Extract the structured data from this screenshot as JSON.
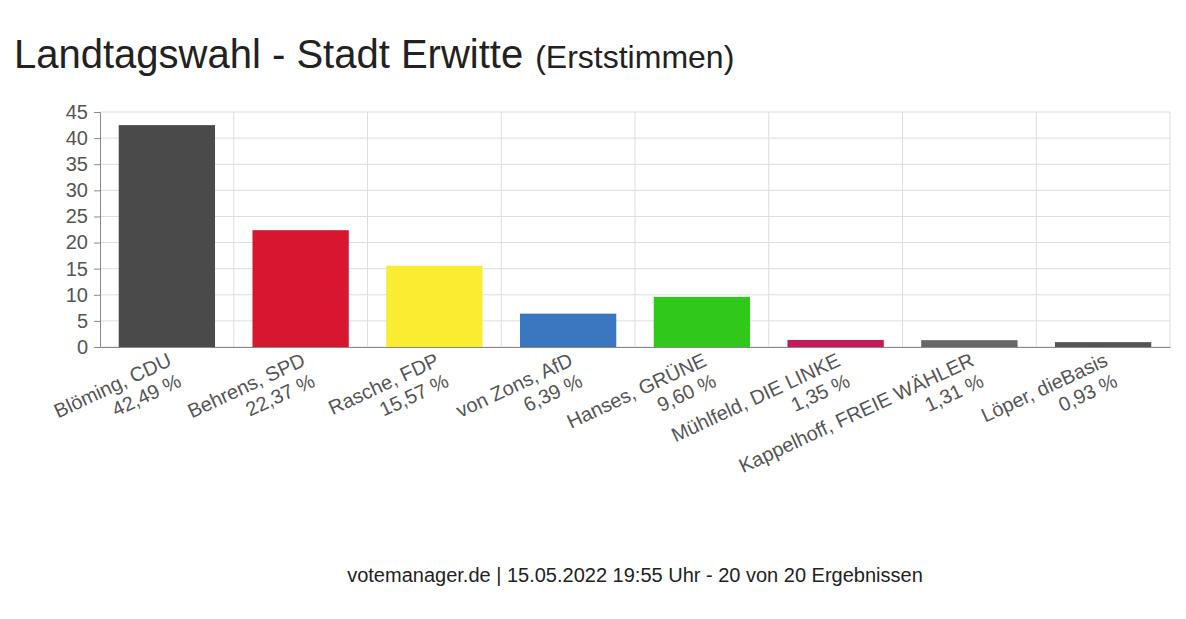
{
  "chart_data": {
    "type": "bar",
    "title": "Landtagswahl - Stadt Erwitte",
    "subtitle": "(Erststimmen)",
    "annotations": [
      "votemanager.de | 15.05.2022 19:55 Uhr - 20 von 20 Ergebnissen"
    ],
    "categories": [
      "Blöming, CDU",
      "Behrens, SPD",
      "Rasche, FDP",
      "von Zons, AfD",
      "Hanses, GRÜNE",
      "Mühlfeld, DIE LINKE",
      "Kappelhoff, FREIE WÄHLER",
      "Löper, dieBasis"
    ],
    "values": [
      42.49,
      22.37,
      15.57,
      6.39,
      9.6,
      1.35,
      1.31,
      0.93
    ],
    "value_labels": [
      "42,49 %",
      "22,37 %",
      "15,57 %",
      "6,39 %",
      "9,60 %",
      "1,35 %",
      "1,31 %",
      "0,93 %"
    ],
    "colors": [
      "#4a4a4a",
      "#d7172f",
      "#f9ec31",
      "#3a77c0",
      "#30c81a",
      "#c7195a",
      "#666666",
      "#555555"
    ],
    "ylim": [
      0,
      45
    ],
    "yticks": [
      0,
      5,
      10,
      15,
      20,
      25,
      30,
      35,
      40,
      45
    ],
    "grid": true
  }
}
